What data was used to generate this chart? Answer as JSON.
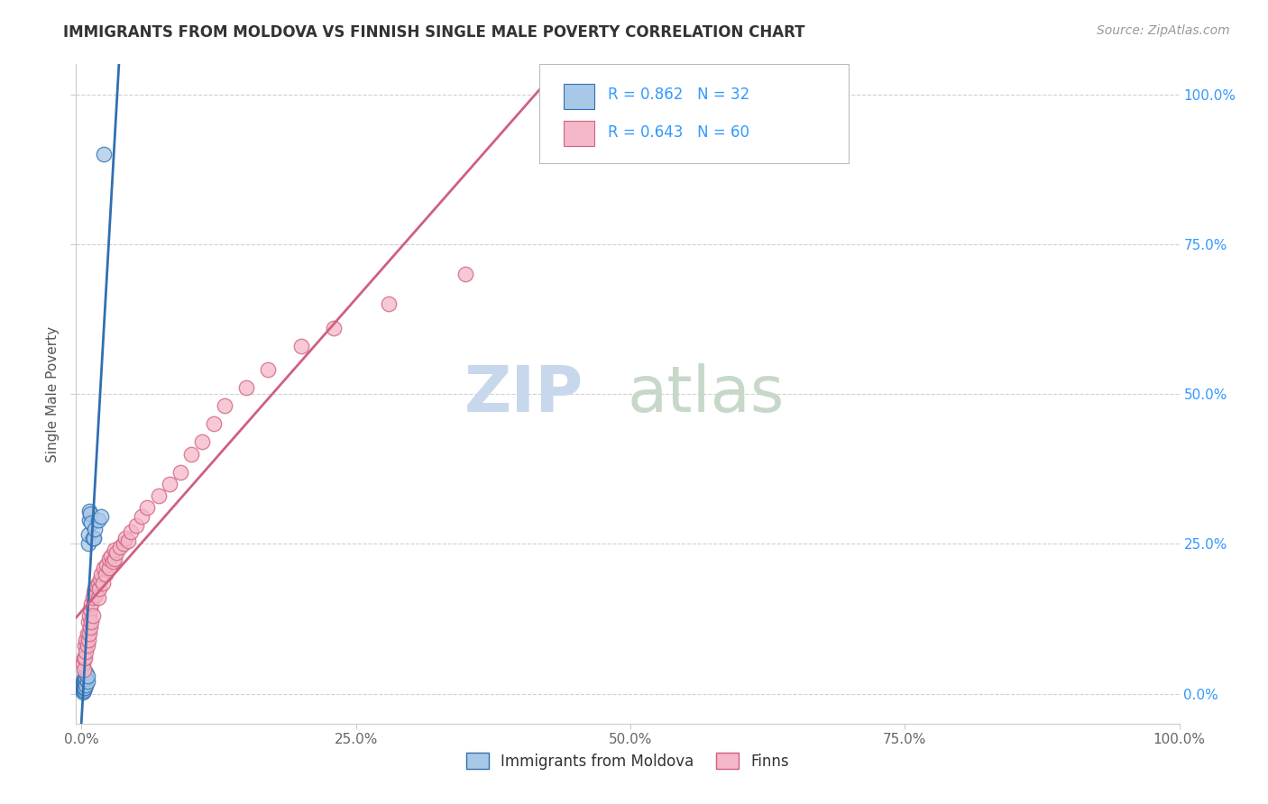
{
  "title": "IMMIGRANTS FROM MOLDOVA VS FINNISH SINGLE MALE POVERTY CORRELATION CHART",
  "source": "Source: ZipAtlas.com",
  "ylabel": "Single Male Poverty",
  "legend_label1": "Immigrants from Moldova",
  "legend_label2": "Finns",
  "r1": 0.862,
  "n1": 32,
  "r2": 0.643,
  "n2": 60,
  "color_blue": "#a8c8e8",
  "color_pink": "#f4b8c8",
  "line_color_blue": "#3070b0",
  "line_color_pink": "#d06080",
  "watermark_zip": "ZIP",
  "watermark_atlas": "atlas",
  "background_color": "#ffffff",
  "grid_color": "#d0d0d0",
  "title_color": "#333333",
  "axis_label_color": "#555555",
  "stat_color": "#3399ff",
  "source_color": "#999999",
  "blue_x": [
    0.001,
    0.001,
    0.001,
    0.001,
    0.001,
    0.001,
    0.001,
    0.002,
    0.002,
    0.002,
    0.002,
    0.002,
    0.003,
    0.003,
    0.003,
    0.004,
    0.004,
    0.004,
    0.005,
    0.005,
    0.006,
    0.006,
    0.007,
    0.007,
    0.008,
    0.009,
    0.01,
    0.011,
    0.012,
    0.015,
    0.018,
    0.02
  ],
  "blue_y": [
    0.002,
    0.005,
    0.008,
    0.01,
    0.013,
    0.016,
    0.02,
    0.005,
    0.01,
    0.015,
    0.02,
    0.025,
    0.01,
    0.02,
    0.03,
    0.015,
    0.025,
    0.035,
    0.02,
    0.03,
    0.25,
    0.265,
    0.29,
    0.305,
    0.3,
    0.285,
    0.26,
    0.26,
    0.275,
    0.29,
    0.295,
    0.9
  ],
  "pink_x": [
    0.001,
    0.002,
    0.002,
    0.003,
    0.003,
    0.004,
    0.004,
    0.005,
    0.005,
    0.006,
    0.006,
    0.007,
    0.007,
    0.008,
    0.008,
    0.009,
    0.009,
    0.01,
    0.01,
    0.011,
    0.012,
    0.013,
    0.014,
    0.015,
    0.015,
    0.016,
    0.017,
    0.018,
    0.019,
    0.02,
    0.022,
    0.023,
    0.025,
    0.025,
    0.027,
    0.028,
    0.03,
    0.03,
    0.032,
    0.035,
    0.038,
    0.04,
    0.042,
    0.045,
    0.05,
    0.055,
    0.06,
    0.07,
    0.08,
    0.09,
    0.1,
    0.11,
    0.12,
    0.13,
    0.15,
    0.17,
    0.2,
    0.23,
    0.28,
    0.35
  ],
  "pink_y": [
    0.05,
    0.06,
    0.04,
    0.08,
    0.06,
    0.09,
    0.07,
    0.1,
    0.08,
    0.12,
    0.09,
    0.13,
    0.1,
    0.14,
    0.11,
    0.15,
    0.12,
    0.16,
    0.13,
    0.17,
    0.175,
    0.165,
    0.18,
    0.185,
    0.16,
    0.175,
    0.19,
    0.2,
    0.185,
    0.21,
    0.2,
    0.215,
    0.21,
    0.225,
    0.23,
    0.22,
    0.225,
    0.24,
    0.235,
    0.245,
    0.25,
    0.26,
    0.255,
    0.27,
    0.28,
    0.295,
    0.31,
    0.33,
    0.35,
    0.37,
    0.4,
    0.42,
    0.45,
    0.48,
    0.51,
    0.54,
    0.58,
    0.61,
    0.65,
    0.7
  ],
  "xlim": [
    -0.005,
    1.0
  ],
  "ylim": [
    -0.05,
    1.05
  ],
  "xtick_vals": [
    0.0,
    0.25,
    0.5,
    0.75,
    1.0
  ],
  "xtick_labels": [
    "0.0%",
    "25.0%",
    "50.0%",
    "75.0%",
    "100.0%"
  ],
  "ytick_vals": [
    0.0,
    0.25,
    0.5,
    0.75,
    1.0
  ],
  "ytick_labels": [
    "0.0%",
    "25.0%",
    "50.0%",
    "75.0%",
    "100.0%"
  ]
}
